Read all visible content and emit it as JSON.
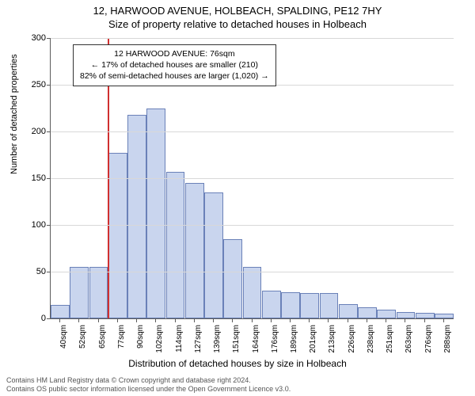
{
  "title_line1": "12, HARWOOD AVENUE, HOLBEACH, SPALDING, PE12 7HY",
  "title_line2": "Size of property relative to detached houses in Holbeach",
  "ylabel": "Number of detached properties",
  "xlabel": "Distribution of detached houses by size in Holbeach",
  "footer_line1": "Contains HM Land Registry data © Crown copyright and database right 2024.",
  "footer_line2": "Contains OS public sector information licensed under the Open Government Licence v3.0.",
  "chart": {
    "type": "histogram",
    "ylim": [
      0,
      300
    ],
    "ytick_step": 50,
    "bar_fill": "#c9d5ee",
    "bar_stroke": "#6a81b8",
    "grid_color": "#d8d8d8",
    "axis_color": "#5b5b5b",
    "background_color": "#ffffff",
    "marker_color": "#d03030",
    "marker_xindex": 3,
    "x_labels": [
      "40sqm",
      "52sqm",
      "65sqm",
      "77sqm",
      "90sqm",
      "102sqm",
      "114sqm",
      "127sqm",
      "139sqm",
      "151sqm",
      "164sqm",
      "176sqm",
      "189sqm",
      "201sqm",
      "213sqm",
      "226sqm",
      "238sqm",
      "251sqm",
      "263sqm",
      "276sqm",
      "288sqm"
    ],
    "values": [
      14,
      55,
      55,
      177,
      218,
      225,
      157,
      145,
      135,
      85,
      55,
      30,
      28,
      27,
      27,
      15,
      12,
      9,
      7,
      6,
      5
    ]
  },
  "callout": {
    "line1": "12 HARWOOD AVENUE: 76sqm",
    "line2": "← 17% of detached houses are smaller (210)",
    "line3": "82% of semi-detached houses are larger (1,020) →"
  }
}
